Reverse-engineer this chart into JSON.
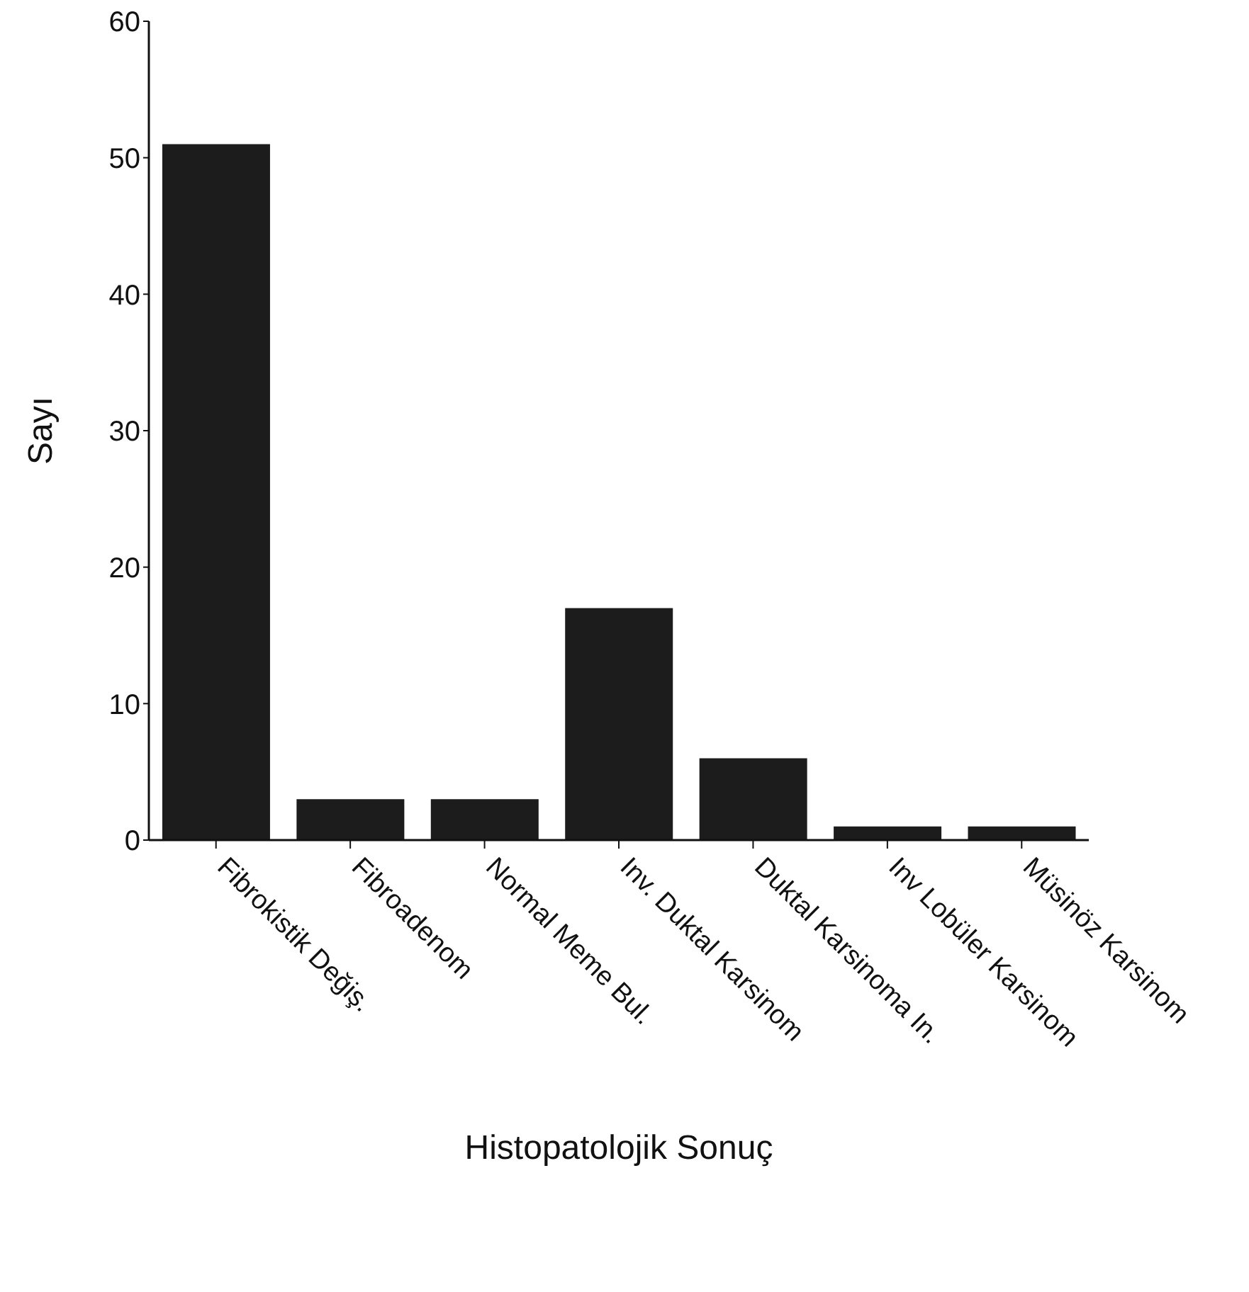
{
  "chart_data": {
    "type": "bar",
    "xlabel": "Histopatolojik Sonuç",
    "ylabel": "Sayı",
    "categories": [
      "Fibrokistik Değiş.",
      "Fibroadenom",
      "Normal Meme Bul.",
      "Inv. Duktal Karsinom",
      "Duktal Karsinoma In.",
      "Inv Lobüler Karsinom",
      "Müsinöz Karsinom"
    ],
    "values": [
      51,
      3,
      3,
      17,
      6,
      1,
      1
    ],
    "color": "#1c1c1c",
    "ylim": [
      0,
      60
    ],
    "yticks": [
      0,
      10,
      20,
      30,
      40,
      50,
      60
    ]
  }
}
